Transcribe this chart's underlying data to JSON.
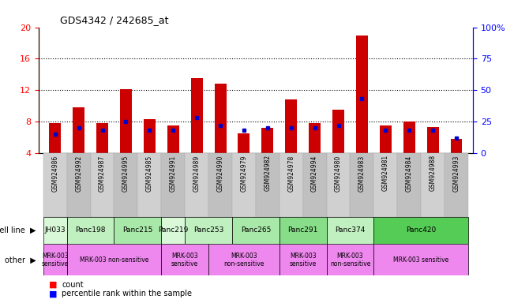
{
  "title": "GDS4342 / 242685_at",
  "samples": [
    "GSM924986",
    "GSM924992",
    "GSM924987",
    "GSM924995",
    "GSM924985",
    "GSM924991",
    "GSM924989",
    "GSM924990",
    "GSM924979",
    "GSM924982",
    "GSM924978",
    "GSM924994",
    "GSM924980",
    "GSM924983",
    "GSM924981",
    "GSM924984",
    "GSM924988",
    "GSM924993"
  ],
  "count_values": [
    7.8,
    9.8,
    7.8,
    12.1,
    8.3,
    7.5,
    13.5,
    12.8,
    6.5,
    7.2,
    10.8,
    7.8,
    9.5,
    19.0,
    7.5,
    8.0,
    7.3,
    5.8
  ],
  "percentile_values": [
    15,
    20,
    18,
    25,
    18,
    18,
    28,
    22,
    18,
    20,
    20,
    20,
    22,
    43,
    18,
    18,
    18,
    12
  ],
  "bar_color": "#cc0000",
  "blue_color": "#0000cc",
  "ylim_left": [
    4,
    20
  ],
  "ylim_right": [
    0,
    100
  ],
  "yticks_left": [
    4,
    8,
    12,
    16,
    20
  ],
  "yticks_right": [
    0,
    25,
    50,
    75,
    100
  ],
  "cl_groups": [
    {
      "label": "JH033",
      "indices": [
        0
      ],
      "color": "#d8f8d8"
    },
    {
      "label": "Panc198",
      "indices": [
        1,
        2
      ],
      "color": "#c0f0c0"
    },
    {
      "label": "Panc215",
      "indices": [
        3,
        4
      ],
      "color": "#a8e8a8"
    },
    {
      "label": "Panc219",
      "indices": [
        5
      ],
      "color": "#d8f8d8"
    },
    {
      "label": "Panc253",
      "indices": [
        6,
        7
      ],
      "color": "#c0f0c0"
    },
    {
      "label": "Panc265",
      "indices": [
        8,
        9
      ],
      "color": "#a8e8a8"
    },
    {
      "label": "Panc291",
      "indices": [
        10,
        11
      ],
      "color": "#88dd88"
    },
    {
      "label": "Panc374",
      "indices": [
        12,
        13
      ],
      "color": "#c0f0c0"
    },
    {
      "label": "Panc420",
      "indices": [
        14,
        15,
        16,
        17
      ],
      "color": "#55cc55"
    }
  ],
  "other_groups": [
    {
      "label": "MRK-003\nsensitive",
      "indices": [
        0
      ],
      "color": "#ee88ee"
    },
    {
      "label": "MRK-003 non-sensitive",
      "indices": [
        1,
        2,
        3,
        4
      ],
      "color": "#ee88ee"
    },
    {
      "label": "MRK-003\nsensitive",
      "indices": [
        5,
        6
      ],
      "color": "#ee88ee"
    },
    {
      "label": "MRK-003\nnon-sensitive",
      "indices": [
        7,
        8,
        9
      ],
      "color": "#ee88ee"
    },
    {
      "label": "MRK-003\nsensitive",
      "indices": [
        10,
        11
      ],
      "color": "#ee88ee"
    },
    {
      "label": "MRK-003\nnon-sensitive",
      "indices": [
        12,
        13
      ],
      "color": "#ee88ee"
    },
    {
      "label": "MRK-003 sensitive",
      "indices": [
        14,
        15,
        16,
        17
      ],
      "color": "#ee88ee"
    }
  ]
}
